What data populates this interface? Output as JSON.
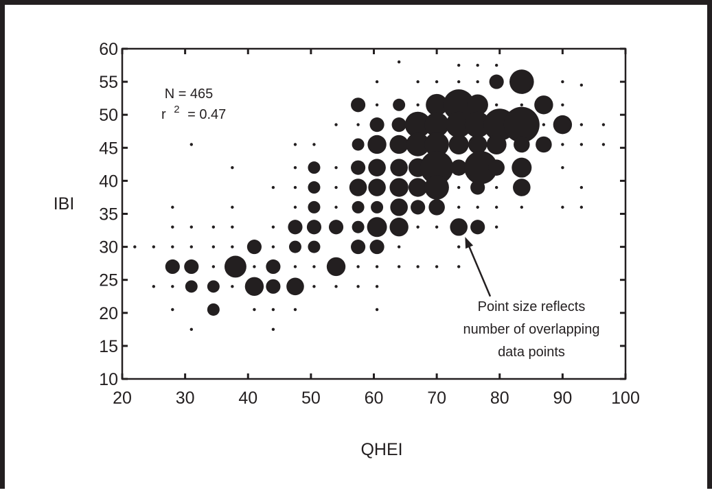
{
  "chart_data": {
    "type": "scatter",
    "title": "",
    "xlabel": "QHEI",
    "ylabel": "IBI",
    "xlim": [
      20,
      100
    ],
    "ylim": [
      10,
      60
    ],
    "xticks": [
      "20",
      "30",
      "40",
      "50",
      "60",
      "70",
      "80",
      "90",
      "100"
    ],
    "yticks": [
      "10",
      "15",
      "20",
      "25",
      "30",
      "35",
      "40",
      "45",
      "50",
      "55",
      "60"
    ],
    "stats": {
      "n": "N = 465",
      "r2_prefix": "r",
      "r2_exp": "2",
      "r2_value": "= 0.47"
    },
    "annotation": [
      "Point size reflects",
      "number of overlapping",
      "data points"
    ],
    "annotation_target": {
      "x": 74.5,
      "y": 31.5
    },
    "annotation_origin": {
      "x": 78.5,
      "y": 22.5
    },
    "point_color": "#231f20",
    "note": "Bubble size encodes count of overlapping points (s = relative count)",
    "points": [
      {
        "x": 22,
        "y": 30,
        "s": 1
      },
      {
        "x": 25,
        "y": 30,
        "s": 1
      },
      {
        "x": 25,
        "y": 24,
        "s": 1
      },
      {
        "x": 28,
        "y": 36,
        "s": 1
      },
      {
        "x": 28,
        "y": 33,
        "s": 1
      },
      {
        "x": 28,
        "y": 30,
        "s": 1
      },
      {
        "x": 28,
        "y": 27,
        "s": 3
      },
      {
        "x": 28,
        "y": 24,
        "s": 1
      },
      {
        "x": 28,
        "y": 20.5,
        "s": 1
      },
      {
        "x": 31,
        "y": 45.5,
        "s": 1
      },
      {
        "x": 31,
        "y": 33,
        "s": 1
      },
      {
        "x": 31,
        "y": 30,
        "s": 1
      },
      {
        "x": 31,
        "y": 27,
        "s": 3
      },
      {
        "x": 31,
        "y": 24,
        "s": 2
      },
      {
        "x": 31,
        "y": 17.5,
        "s": 1
      },
      {
        "x": 34.5,
        "y": 33,
        "s": 1
      },
      {
        "x": 34.5,
        "y": 30,
        "s": 1
      },
      {
        "x": 34.5,
        "y": 27,
        "s": 1
      },
      {
        "x": 34.5,
        "y": 24,
        "s": 2
      },
      {
        "x": 34.5,
        "y": 20.5,
        "s": 2
      },
      {
        "x": 37.5,
        "y": 42,
        "s": 1
      },
      {
        "x": 37.5,
        "y": 36,
        "s": 1
      },
      {
        "x": 37.5,
        "y": 33,
        "s": 1
      },
      {
        "x": 37.5,
        "y": 30,
        "s": 1
      },
      {
        "x": 38,
        "y": 27,
        "s": 9
      },
      {
        "x": 37.5,
        "y": 24,
        "s": 1
      },
      {
        "x": 41,
        "y": 30,
        "s": 3
      },
      {
        "x": 41,
        "y": 27,
        "s": 1
      },
      {
        "x": 41,
        "y": 24,
        "s": 6
      },
      {
        "x": 41,
        "y": 20.5,
        "s": 1
      },
      {
        "x": 44,
        "y": 39,
        "s": 1
      },
      {
        "x": 44,
        "y": 33,
        "s": 1
      },
      {
        "x": 44,
        "y": 30,
        "s": 1
      },
      {
        "x": 44,
        "y": 27,
        "s": 3
      },
      {
        "x": 44,
        "y": 24,
        "s": 3
      },
      {
        "x": 44,
        "y": 20.5,
        "s": 1
      },
      {
        "x": 44,
        "y": 17.5,
        "s": 1
      },
      {
        "x": 47.5,
        "y": 45.5,
        "s": 1
      },
      {
        "x": 47.5,
        "y": 42,
        "s": 1
      },
      {
        "x": 47.5,
        "y": 39,
        "s": 1
      },
      {
        "x": 47.5,
        "y": 36,
        "s": 1
      },
      {
        "x": 47.5,
        "y": 33,
        "s": 3
      },
      {
        "x": 47.5,
        "y": 30,
        "s": 2
      },
      {
        "x": 47.5,
        "y": 27,
        "s": 1
      },
      {
        "x": 47.5,
        "y": 24,
        "s": 5
      },
      {
        "x": 47.5,
        "y": 20.5,
        "s": 1
      },
      {
        "x": 50.5,
        "y": 45.5,
        "s": 1
      },
      {
        "x": 50.5,
        "y": 42,
        "s": 2
      },
      {
        "x": 50.5,
        "y": 39,
        "s": 2
      },
      {
        "x": 50.5,
        "y": 36,
        "s": 2
      },
      {
        "x": 50.5,
        "y": 33,
        "s": 3
      },
      {
        "x": 50.5,
        "y": 30,
        "s": 2
      },
      {
        "x": 50.5,
        "y": 27,
        "s": 1
      },
      {
        "x": 50.5,
        "y": 24,
        "s": 1
      },
      {
        "x": 54,
        "y": 48.5,
        "s": 1
      },
      {
        "x": 54,
        "y": 42,
        "s": 1
      },
      {
        "x": 54,
        "y": 39,
        "s": 1
      },
      {
        "x": 54,
        "y": 36,
        "s": 1
      },
      {
        "x": 54,
        "y": 33,
        "s": 3
      },
      {
        "x": 54,
        "y": 27,
        "s": 6
      },
      {
        "x": 54,
        "y": 24,
        "s": 1
      },
      {
        "x": 57.5,
        "y": 51.5,
        "s": 3
      },
      {
        "x": 57.5,
        "y": 48.5,
        "s": 1
      },
      {
        "x": 57.5,
        "y": 45.5,
        "s": 2
      },
      {
        "x": 57.5,
        "y": 42,
        "s": 3
      },
      {
        "x": 57.5,
        "y": 39,
        "s": 5
      },
      {
        "x": 57.5,
        "y": 36,
        "s": 2
      },
      {
        "x": 57.5,
        "y": 33,
        "s": 2
      },
      {
        "x": 57.5,
        "y": 30,
        "s": 3
      },
      {
        "x": 57.5,
        "y": 27,
        "s": 1
      },
      {
        "x": 57.5,
        "y": 24,
        "s": 1
      },
      {
        "x": 60.5,
        "y": 55,
        "s": 1
      },
      {
        "x": 60.5,
        "y": 51.5,
        "s": 1
      },
      {
        "x": 60.5,
        "y": 48.5,
        "s": 3
      },
      {
        "x": 60.5,
        "y": 45.5,
        "s": 6
      },
      {
        "x": 60.5,
        "y": 42,
        "s": 5
      },
      {
        "x": 60.5,
        "y": 39,
        "s": 5
      },
      {
        "x": 60.5,
        "y": 36,
        "s": 2
      },
      {
        "x": 60.5,
        "y": 33,
        "s": 7
      },
      {
        "x": 60.5,
        "y": 30,
        "s": 3
      },
      {
        "x": 60.5,
        "y": 27,
        "s": 1
      },
      {
        "x": 60.5,
        "y": 24,
        "s": 1
      },
      {
        "x": 60.5,
        "y": 20.5,
        "s": 1
      },
      {
        "x": 64,
        "y": 58,
        "s": 1
      },
      {
        "x": 64,
        "y": 51.5,
        "s": 2
      },
      {
        "x": 64,
        "y": 48.5,
        "s": 3
      },
      {
        "x": 64,
        "y": 45.5,
        "s": 6
      },
      {
        "x": 64,
        "y": 42,
        "s": 5
      },
      {
        "x": 64,
        "y": 39,
        "s": 6
      },
      {
        "x": 64,
        "y": 36,
        "s": 5
      },
      {
        "x": 64,
        "y": 33,
        "s": 6
      },
      {
        "x": 64,
        "y": 30,
        "s": 1
      },
      {
        "x": 64,
        "y": 27,
        "s": 1
      },
      {
        "x": 67,
        "y": 55,
        "s": 1
      },
      {
        "x": 67,
        "y": 51.5,
        "s": 1
      },
      {
        "x": 67,
        "y": 48.5,
        "s": 14
      },
      {
        "x": 67,
        "y": 45.5,
        "s": 11
      },
      {
        "x": 67,
        "y": 42,
        "s": 6
      },
      {
        "x": 67,
        "y": 39,
        "s": 6
      },
      {
        "x": 67,
        "y": 36,
        "s": 3
      },
      {
        "x": 67,
        "y": 33,
        "s": 1
      },
      {
        "x": 67,
        "y": 27,
        "s": 1
      },
      {
        "x": 70,
        "y": 55,
        "s": 1
      },
      {
        "x": 70,
        "y": 51.5,
        "s": 9
      },
      {
        "x": 70,
        "y": 48.5,
        "s": 12
      },
      {
        "x": 70,
        "y": 45.5,
        "s": 12
      },
      {
        "x": 70,
        "y": 42,
        "s": 26
      },
      {
        "x": 70,
        "y": 39,
        "s": 12
      },
      {
        "x": 70,
        "y": 36,
        "s": 4
      },
      {
        "x": 70,
        "y": 33,
        "s": 1
      },
      {
        "x": 70,
        "y": 27,
        "s": 1
      },
      {
        "x": 73.5,
        "y": 57.5,
        "s": 1
      },
      {
        "x": 73.5,
        "y": 55,
        "s": 1
      },
      {
        "x": 73.5,
        "y": 51.5,
        "s": 22
      },
      {
        "x": 73.5,
        "y": 48.5,
        "s": 14
      },
      {
        "x": 73.5,
        "y": 45.5,
        "s": 7
      },
      {
        "x": 73.5,
        "y": 42,
        "s": 4
      },
      {
        "x": 73.5,
        "y": 39,
        "s": 1
      },
      {
        "x": 73.5,
        "y": 36,
        "s": 1
      },
      {
        "x": 73.5,
        "y": 33,
        "s": 5
      },
      {
        "x": 73.5,
        "y": 30,
        "s": 1
      },
      {
        "x": 73.5,
        "y": 27,
        "s": 1
      },
      {
        "x": 76.5,
        "y": 57.5,
        "s": 1
      },
      {
        "x": 76.5,
        "y": 55,
        "s": 1
      },
      {
        "x": 76.5,
        "y": 51.5,
        "s": 8
      },
      {
        "x": 76.5,
        "y": 48.5,
        "s": 14
      },
      {
        "x": 76.5,
        "y": 45.5,
        "s": 6
      },
      {
        "x": 77,
        "y": 42,
        "s": 26
      },
      {
        "x": 76.5,
        "y": 39,
        "s": 3
      },
      {
        "x": 76.5,
        "y": 36,
        "s": 1
      },
      {
        "x": 76.5,
        "y": 33,
        "s": 3
      },
      {
        "x": 79.5,
        "y": 57.5,
        "s": 1
      },
      {
        "x": 79.5,
        "y": 55,
        "s": 3
      },
      {
        "x": 79.5,
        "y": 51.5,
        "s": 1
      },
      {
        "x": 80,
        "y": 48.5,
        "s": 24
      },
      {
        "x": 79.5,
        "y": 45.5,
        "s": 7
      },
      {
        "x": 79.5,
        "y": 42,
        "s": 4
      },
      {
        "x": 79.5,
        "y": 39,
        "s": 1
      },
      {
        "x": 79.5,
        "y": 36,
        "s": 1
      },
      {
        "x": 79.5,
        "y": 33,
        "s": 1
      },
      {
        "x": 83.5,
        "y": 55,
        "s": 12
      },
      {
        "x": 83.5,
        "y": 51.5,
        "s": 1
      },
      {
        "x": 83.5,
        "y": 48.5,
        "s": 31
      },
      {
        "x": 83.5,
        "y": 45.5,
        "s": 4
      },
      {
        "x": 83.5,
        "y": 42,
        "s": 7
      },
      {
        "x": 83.5,
        "y": 39,
        "s": 5
      },
      {
        "x": 83.5,
        "y": 36,
        "s": 1
      },
      {
        "x": 87,
        "y": 51.5,
        "s": 6
      },
      {
        "x": 87,
        "y": 48.5,
        "s": 1
      },
      {
        "x": 87,
        "y": 45.5,
        "s": 4
      },
      {
        "x": 90,
        "y": 55,
        "s": 1
      },
      {
        "x": 90,
        "y": 51.5,
        "s": 1
      },
      {
        "x": 90,
        "y": 48.5,
        "s": 6
      },
      {
        "x": 90,
        "y": 45.5,
        "s": 1
      },
      {
        "x": 90,
        "y": 42,
        "s": 1
      },
      {
        "x": 90,
        "y": 36,
        "s": 1
      },
      {
        "x": 93,
        "y": 54.5,
        "s": 1
      },
      {
        "x": 93,
        "y": 48.5,
        "s": 1
      },
      {
        "x": 93,
        "y": 45.5,
        "s": 1
      },
      {
        "x": 93,
        "y": 39,
        "s": 1
      },
      {
        "x": 93,
        "y": 36,
        "s": 1
      },
      {
        "x": 96.5,
        "y": 48.5,
        "s": 1
      },
      {
        "x": 96.5,
        "y": 45.5,
        "s": 1
      }
    ]
  }
}
